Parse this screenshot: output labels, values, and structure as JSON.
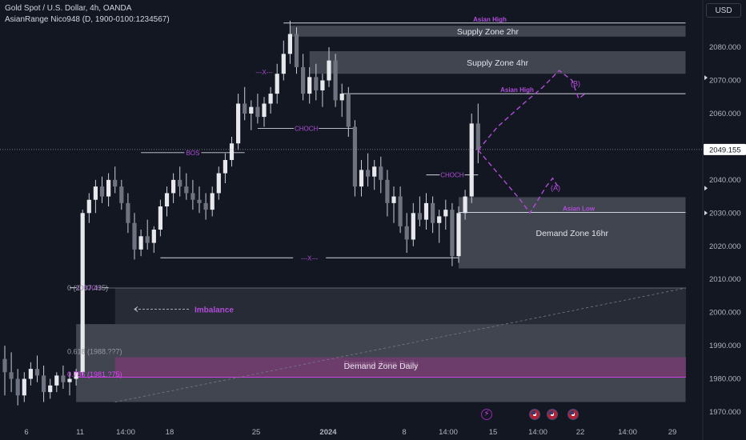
{
  "legend": {
    "line1": "Gold Spot / U.S. Dollar, 4h, OANDA",
    "line2": "AsianRange Nico948 (D, 1900-0100:1234567)"
  },
  "currency_button": "USD",
  "colors": {
    "bg": "#131722",
    "candle": "#c9ccd4",
    "zone": "#4a4e58",
    "zone_daily_pink": "#7b3b74",
    "purple": "#b04cd9",
    "axis_text": "#b2b5be",
    "price_label_bg": "#ffffff"
  },
  "chart_data": {
    "type": "candlestick",
    "price_axis": {
      "ticks": [
        2080,
        2070,
        2060,
        2050,
        2040,
        2030,
        2020,
        2010,
        2000,
        1990,
        1980,
        1970
      ],
      "tick_labels": [
        "2080.000",
        "2070.000",
        "2060.000",
        "2050.000",
        "2040.000",
        "2030.000",
        "2020.000",
        "2010.000",
        "2000.000",
        "1990.000",
        "1980.000",
        "1970.000"
      ],
      "current_price_label": "2049.155",
      "current_price": 2049.155
    },
    "time_axis": {
      "labels": [
        "6",
        "11",
        "14:00",
        "18",
        "25",
        "2024",
        "8",
        "14:00",
        "15",
        "14:00",
        "22",
        "14:00",
        "29"
      ],
      "label_x_index": [
        0,
        1,
        2,
        3,
        4,
        5,
        6,
        7,
        8,
        9,
        10,
        11,
        12
      ]
    },
    "candles": [
      [
        0,
        1986,
        1990,
        1975,
        1982
      ],
      [
        1,
        1982,
        1988,
        1976,
        1980
      ],
      [
        2,
        1980,
        1983,
        1972,
        1975
      ],
      [
        3,
        1975,
        1982,
        1973,
        1980
      ],
      [
        4,
        1980,
        1985,
        1978,
        1983
      ],
      [
        5,
        1983,
        1987,
        1979,
        1981
      ],
      [
        6,
        1981,
        1984,
        1973,
        1976
      ],
      [
        7,
        1976,
        1980,
        1974,
        1978
      ],
      [
        8,
        1978,
        1982,
        1976,
        1981
      ],
      [
        9,
        1981,
        1984,
        1977,
        1979
      ],
      [
        10,
        1979,
        1982,
        1975,
        1980
      ],
      [
        11,
        1980,
        1983,
        1978,
        1982
      ],
      [
        12,
        1982,
        2031,
        1981,
        2030
      ],
      [
        13,
        2030,
        2036,
        2027,
        2034
      ],
      [
        14,
        2034,
        2040,
        2030,
        2038
      ],
      [
        15,
        2038,
        2041,
        2033,
        2035
      ],
      [
        16,
        2035,
        2042,
        2032,
        2040
      ],
      [
        17,
        2040,
        2044,
        2036,
        2038
      ],
      [
        18,
        2038,
        2040,
        2031,
        2033
      ],
      [
        19,
        2033,
        2036,
        2024,
        2027
      ],
      [
        20,
        2027,
        2030,
        2016,
        2019
      ],
      [
        21,
        2019,
        2025,
        2017,
        2023
      ],
      [
        22,
        2023,
        2028,
        2019,
        2021
      ],
      [
        23,
        2021,
        2026,
        2018,
        2025
      ],
      [
        24,
        2025,
        2034,
        2023,
        2032
      ],
      [
        25,
        2032,
        2038,
        2029,
        2036
      ],
      [
        26,
        2036,
        2042,
        2033,
        2040
      ],
      [
        27,
        2040,
        2044,
        2035,
        2038
      ],
      [
        28,
        2038,
        2042,
        2034,
        2036
      ],
      [
        29,
        2036,
        2040,
        2031,
        2034
      ],
      [
        30,
        2034,
        2038,
        2030,
        2033
      ],
      [
        31,
        2033,
        2036,
        2028,
        2031
      ],
      [
        32,
        2031,
        2038,
        2029,
        2036
      ],
      [
        33,
        2036,
        2044,
        2034,
        2042
      ],
      [
        34,
        2042,
        2048,
        2039,
        2046
      ],
      [
        35,
        2046,
        2053,
        2044,
        2051
      ],
      [
        36,
        2051,
        2066,
        2049,
        2063
      ],
      [
        37,
        2063,
        2068,
        2058,
        2060
      ],
      [
        38,
        2060,
        2064,
        2055,
        2062
      ],
      [
        39,
        2062,
        2066,
        2057,
        2059
      ],
      [
        40,
        2059,
        2065,
        2056,
        2063
      ],
      [
        41,
        2063,
        2068,
        2060,
        2066
      ],
      [
        42,
        2066,
        2075,
        2063,
        2072
      ],
      [
        43,
        2072,
        2082,
        2070,
        2078
      ],
      [
        44,
        2078,
        2088,
        2075,
        2084
      ],
      [
        45,
        2084,
        2086,
        2072,
        2074
      ],
      [
        46,
        2074,
        2078,
        2064,
        2066
      ],
      [
        47,
        2066,
        2074,
        2063,
        2071
      ],
      [
        48,
        2071,
        2075,
        2064,
        2067
      ],
      [
        49,
        2067,
        2072,
        2062,
        2070
      ],
      [
        50,
        2070,
        2080,
        2068,
        2076
      ],
      [
        51,
        2076,
        2078,
        2062,
        2064
      ],
      [
        52,
        2064,
        2069,
        2059,
        2066
      ],
      [
        53,
        2066,
        2068,
        2053,
        2056
      ],
      [
        54,
        2056,
        2058,
        2035,
        2038
      ],
      [
        55,
        2038,
        2046,
        2035,
        2043
      ],
      [
        56,
        2043,
        2048,
        2038,
        2041
      ],
      [
        57,
        2041,
        2046,
        2037,
        2044
      ],
      [
        58,
        2044,
        2047,
        2036,
        2040
      ],
      [
        59,
        2040,
        2043,
        2029,
        2033
      ],
      [
        60,
        2033,
        2038,
        2027,
        2035
      ],
      [
        61,
        2035,
        2038,
        2024,
        2026
      ],
      [
        62,
        2026,
        2030,
        2018,
        2022
      ],
      [
        63,
        2022,
        2033,
        2020,
        2030
      ],
      [
        64,
        2030,
        2035,
        2026,
        2028
      ],
      [
        65,
        2028,
        2036,
        2025,
        2033
      ],
      [
        66,
        2033,
        2035,
        2024,
        2027
      ],
      [
        67,
        2027,
        2031,
        2021,
        2029
      ],
      [
        68,
        2029,
        2034,
        2025,
        2031
      ],
      [
        69,
        2031,
        2033,
        2014,
        2017
      ],
      [
        70,
        2017,
        2032,
        2015,
        2030
      ],
      [
        71,
        2030,
        2037,
        2028,
        2035
      ],
      [
        72,
        2035,
        2060,
        2033,
        2057
      ],
      [
        73,
        2057,
        2063,
        2045,
        2049
      ]
    ],
    "zones": [
      {
        "label": "Supply Zone 2hr",
        "top": 2086.5,
        "bottom": 2083.2,
        "from": 44,
        "to": 105
      },
      {
        "label": "Supply Zone 4hr",
        "top": 2078.8,
        "bottom": 2072,
        "from": 47,
        "to": 105
      },
      {
        "label": "Demand Zone 16hr",
        "top": 2034.8,
        "bottom": 2013.3,
        "from": 70,
        "to": 105
      },
      {
        "label": "Demand Zone Daily",
        "top": 1996.5,
        "bottom": 1973,
        "from": 11,
        "to": 105
      }
    ],
    "levels": [
      {
        "label": "Asian High",
        "price": 2087.3,
        "from": 43,
        "to": 105
      },
      {
        "label": "Asian High",
        "price": 2066,
        "from": 52,
        "to": 105
      },
      {
        "label": "Asian Low",
        "price": 2030.2,
        "from": 70,
        "to": 105
      }
    ],
    "structure_labels": [
      {
        "label": "BOS",
        "price": 2048.2,
        "from": 21,
        "to": 37
      },
      {
        "label": "CHOCH",
        "price": 2055.5,
        "from": 39,
        "to": 54
      },
      {
        "label": "CHOCH",
        "price": 2041.5,
        "from": 65,
        "to": 73
      },
      {
        "label": "CHOCH",
        "price": 2007.5,
        "from": 10,
        "to": 16
      },
      {
        "label": "---X---",
        "price": 2072.5,
        "from": 38,
        "to": 42
      },
      {
        "label": "---X---",
        "price": 2016.5,
        "from": 24,
        "to": 70
      }
    ],
    "fib_labels": [
      {
        "label": "0 (2007.435)",
        "price": 2007.4
      },
      {
        "label": "0.618 (1988.??7)",
        "price": 1988.2
      },
      {
        "label": "0.786 (1981.?75)",
        "price": 1981.3
      }
    ],
    "annotations": [
      {
        "label": "Imbalance",
        "price": 2001
      },
      {
        "label": "(A)",
        "price": 2037.5
      },
      {
        "label": "(B)",
        "price": 2069
      }
    ]
  }
}
